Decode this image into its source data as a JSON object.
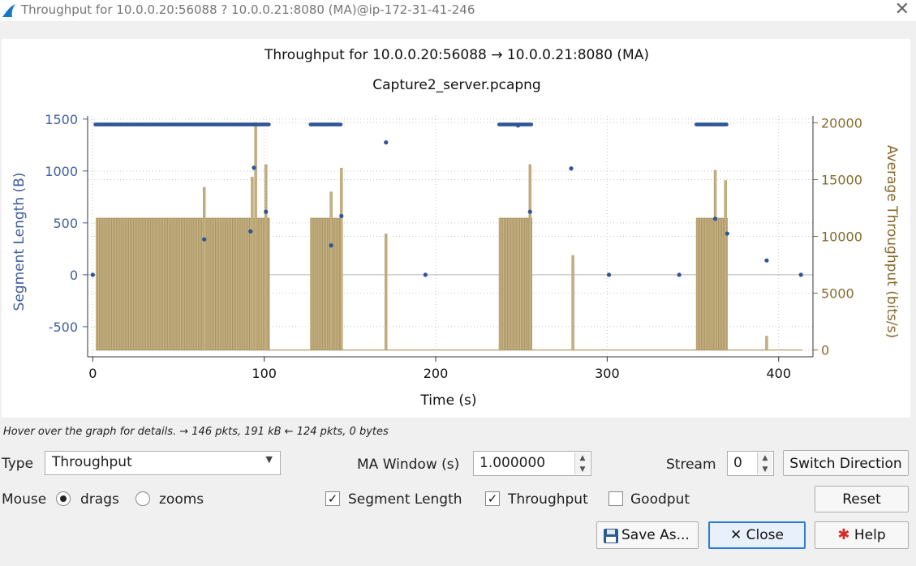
{
  "window": {
    "title": "Throughput for 10.0.0.20:56088 ? 10.0.0.21:8080 (MA)@ip-172-31-41-246"
  },
  "chart_data": {
    "type": "scatter",
    "title": "Throughput for 10.0.0.20:56088 → 10.0.0.21:8080 (MA)",
    "subtitle": "Capture2_server.pcapng",
    "xlabel": "Time (s)",
    "ylabel": "Segment Length (B)",
    "y2label": "Average Throughput (bits/s)",
    "xlim": [
      -3,
      420
    ],
    "ylim": [
      -790,
      1530
    ],
    "y2lim": [
      -600,
      20600
    ],
    "xticks": [
      0,
      100,
      200,
      300,
      400
    ],
    "yticks": [
      -500,
      0,
      500,
      1000,
      1500
    ],
    "y2ticks": [
      0,
      5000,
      10000,
      15000,
      20000
    ],
    "grid": true,
    "colors": {
      "segment": "#2e5597",
      "throughput": "#b59f6b",
      "left_axis": "#3f5fa0",
      "right_axis": "#85692b"
    },
    "series": [
      {
        "name": "Segment Length",
        "dense_runs": [
          {
            "x_start": 1.5,
            "x_end": 103,
            "y": 1448
          },
          {
            "x_start": 127,
            "x_end": 145,
            "y": 1448
          },
          {
            "x_start": 237,
            "x_end": 256,
            "y": 1448
          },
          {
            "x_start": 352,
            "x_end": 370,
            "y": 1448
          }
        ],
        "points": [
          [
            0,
            0
          ],
          [
            65,
            341
          ],
          [
            92,
            418
          ],
          [
            94,
            1031
          ],
          [
            101,
            607
          ],
          [
            139,
            283
          ],
          [
            145,
            566
          ],
          [
            171,
            1275
          ],
          [
            194,
            0
          ],
          [
            248,
            1438
          ],
          [
            255,
            607
          ],
          [
            279,
            1024
          ],
          [
            301,
            0
          ],
          [
            342,
            0
          ],
          [
            363,
            540
          ],
          [
            370,
            397
          ],
          [
            393,
            138
          ],
          [
            413,
            0
          ]
        ]
      },
      {
        "name": "Throughput",
        "baseline": 0,
        "plateau": 11600,
        "block_runs": [
          {
            "x_start": 2,
            "x_end": 103
          },
          {
            "x_start": 127,
            "x_end": 145
          },
          {
            "x_start": 237,
            "x_end": 256
          },
          {
            "x_start": 352,
            "x_end": 370
          }
        ],
        "spikes": [
          [
            65,
            14300
          ],
          [
            93,
            15200
          ],
          [
            95,
            20000
          ],
          [
            101,
            16300
          ],
          [
            139,
            13900
          ],
          [
            145,
            16000
          ],
          [
            171,
            10200
          ],
          [
            255,
            16300
          ],
          [
            280,
            8300
          ],
          [
            363,
            15800
          ],
          [
            369,
            14900
          ],
          [
            393,
            1200
          ]
        ]
      }
    ]
  },
  "status": {
    "hint": "Hover over the graph for details. → 146 pkts, 191 kB ← 124 pkts, 0 bytes"
  },
  "controls": {
    "type_label": "Type",
    "type_value": "Throughput",
    "ma_window_label": "MA Window (s)",
    "ma_window_value": "1.000000",
    "stream_label": "Stream",
    "stream_value": "0",
    "switch_direction": "Switch Direction",
    "mouse_label": "Mouse",
    "drags_label": "drags",
    "zooms_label": "zooms",
    "segment_length_label": "Segment Length",
    "throughput_label": "Throughput",
    "goodput_label": "Goodput",
    "reset": "Reset",
    "save_as": "Save As...",
    "close": "Close",
    "help": "Help"
  }
}
